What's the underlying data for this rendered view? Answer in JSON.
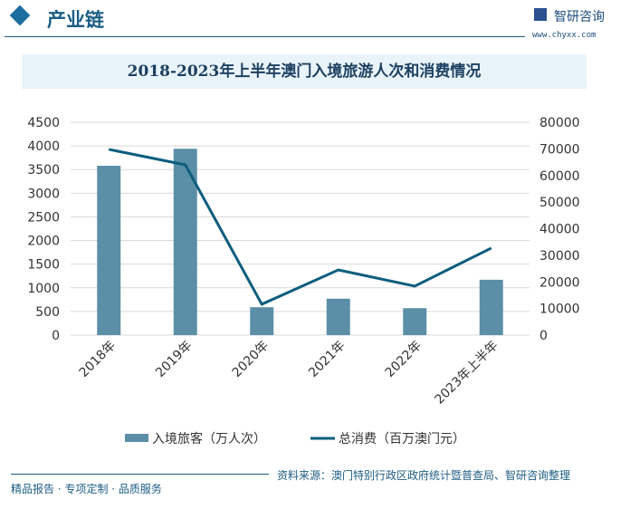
{
  "header": {
    "title": "产业链",
    "brand": "智研咨询",
    "url": "www.chyxx.com"
  },
  "footer": {
    "left": "精品报告 · 专项定制 · 品质服务",
    "source": "资料来源：澳门特别行政区政府统计暨普查局、智研咨询整理"
  },
  "chart_data": {
    "type": "bar+line",
    "title": "2018-2023年上半年澳门入境旅游人次和消费情况",
    "categories": [
      "2018年",
      "2019年",
      "2020年",
      "2021年",
      "2022年",
      "2023年上半年"
    ],
    "series": [
      {
        "name": "入境旅客（万人次）",
        "type": "bar",
        "axis": "left",
        "values": [
          3580,
          3940,
          590,
          770,
          570,
          1170
        ]
      },
      {
        "name": "总消费（百万澳门元）",
        "type": "line",
        "axis": "right",
        "values": [
          69800,
          64000,
          11600,
          24500,
          18400,
          32700
        ]
      }
    ],
    "y_left": {
      "range": [
        0,
        4500
      ],
      "ticks": [
        0,
        500,
        1000,
        1500,
        2000,
        2500,
        3000,
        3500,
        4000,
        4500
      ]
    },
    "y_right": {
      "range": [
        0,
        80000
      ],
      "ticks": [
        0,
        10000,
        20000,
        30000,
        40000,
        50000,
        60000,
        70000,
        80000
      ]
    },
    "grid": true,
    "legend": "bottom",
    "colors": {
      "bar": "#5b8fa8",
      "line": "#0d5d7e"
    }
  }
}
